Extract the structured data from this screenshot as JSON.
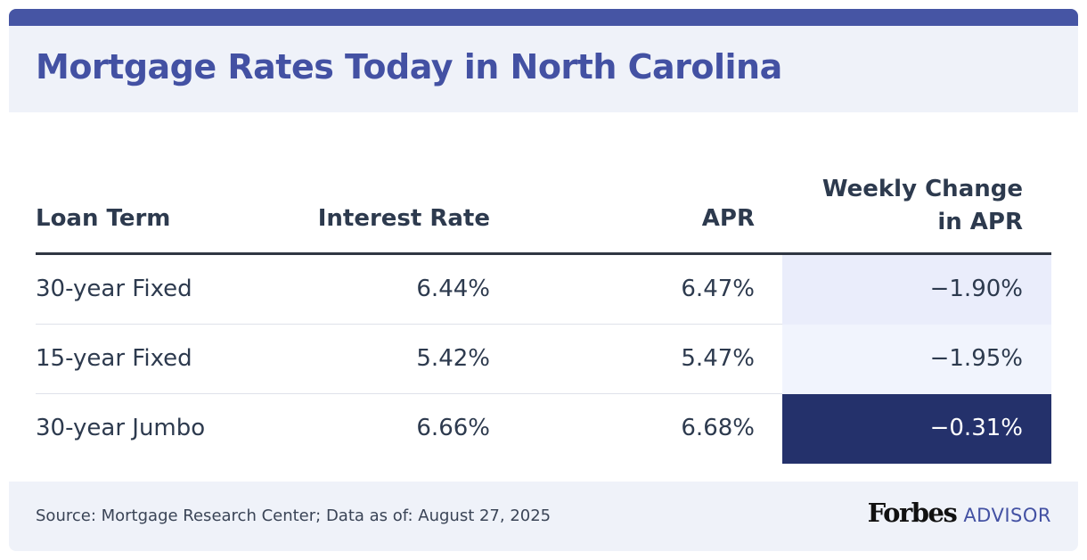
{
  "header": {
    "title": "Mortgage Rates Today in North Carolina"
  },
  "table": {
    "columns": {
      "term": "Loan Term",
      "rate": "Interest Rate",
      "apr": "APR",
      "change_line1": "Weekly Change",
      "change_line2": "in APR"
    },
    "rows": [
      {
        "term": "30-year Fixed",
        "rate": "6.44%",
        "apr": "6.47%",
        "change": "−1.90%"
      },
      {
        "term": "15-year Fixed",
        "rate": "5.42%",
        "apr": "5.47%",
        "change": "−1.95%"
      },
      {
        "term": "30-year Jumbo",
        "rate": "6.66%",
        "apr": "6.68%",
        "change": "−0.31%"
      }
    ]
  },
  "footer": {
    "source": "Source: Mortgage Research Center; Data as of: August 27, 2025",
    "logo_brand": "Forbes",
    "logo_product": "ADVISOR"
  },
  "colors": {
    "brand_blue": "#4351a3",
    "top_bar": "#4655a4",
    "panel_bg": "#eff2f9",
    "text": "#2d3a4e",
    "highlight_dark": "#24316b",
    "highlight_light_1": "#eaedfb",
    "highlight_light_2": "#f1f4fd"
  }
}
